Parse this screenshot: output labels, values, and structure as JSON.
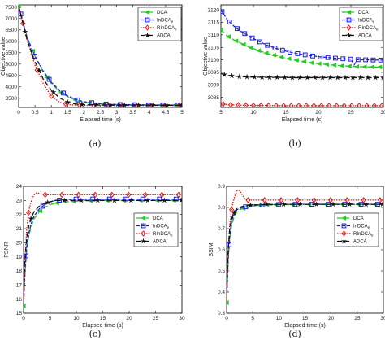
{
  "series_styles": [
    {
      "name": "DCA",
      "color": "#22cc22",
      "dash": "6,3",
      "marker": "arrow-left"
    },
    {
      "name": "InDCA",
      "sub": "e",
      "color": "#1a1aee",
      "dash": "4,2",
      "marker": "square"
    },
    {
      "name": "RInDCA",
      "sub": "e",
      "color": "#ee1111",
      "dash": "1.5,1.5",
      "marker": "diamond"
    },
    {
      "name": "ADCA",
      "color": "#111111",
      "dash": "6,3",
      "marker": "star"
    }
  ],
  "chart_data": [
    {
      "type": "line",
      "caption": "(a)",
      "xlabel": "Elapsed time (s)",
      "ylabel": "Objective value",
      "xlim": [
        0,
        5
      ],
      "ylim": [
        3100,
        7600
      ],
      "xticks": [
        0,
        0.5,
        1,
        1.5,
        2,
        2.5,
        3,
        3.5,
        4,
        4.5,
        5
      ],
      "xticklabels": [
        "0",
        "0.5",
        "1",
        "1.5",
        "2",
        "2.5",
        "3",
        "3.5",
        "4",
        "4.5",
        "5"
      ],
      "yticks": [
        3500,
        4000,
        4500,
        5000,
        5500,
        6000,
        6500,
        7000,
        7500
      ],
      "legend_position": "top-right",
      "series": [
        {
          "name": "DCA",
          "x": [
            0,
            0.25,
            0.5,
            0.75,
            1,
            1.25,
            1.5,
            1.75,
            2,
            2.5,
            3,
            3.5,
            4,
            4.5,
            5
          ],
          "y": [
            7550,
            6200,
            5350,
            4650,
            4150,
            3800,
            3570,
            3420,
            3330,
            3250,
            3220,
            3210,
            3205,
            3200,
            3200
          ]
        },
        {
          "name": "InDCA",
          "x": [
            0,
            0.25,
            0.5,
            0.75,
            1,
            1.25,
            1.5,
            1.75,
            2,
            2.5,
            3,
            3.5,
            4,
            4.5,
            5
          ],
          "y": [
            7550,
            6200,
            5350,
            4700,
            4200,
            3850,
            3600,
            3450,
            3350,
            3260,
            3230,
            3220,
            3210,
            3205,
            3200
          ]
        },
        {
          "name": "RInDCA",
          "x": [
            0,
            0.25,
            0.5,
            0.75,
            1,
            1.25,
            1.5,
            1.75,
            2,
            2.5,
            3,
            3.5,
            4,
            4.5,
            5
          ],
          "y": [
            7550,
            6100,
            4950,
            4150,
            3600,
            3330,
            3230,
            3200,
            3190,
            3185,
            3185,
            3185,
            3185,
            3185,
            3185
          ]
        },
        {
          "name": "ADCA",
          "x": [
            0,
            0.25,
            0.5,
            0.75,
            1,
            1.25,
            1.5,
            1.75,
            2,
            2.5,
            3,
            3.5,
            4,
            4.5,
            5
          ],
          "y": [
            7550,
            6100,
            5100,
            4350,
            3850,
            3520,
            3330,
            3250,
            3220,
            3205,
            3200,
            3198,
            3197,
            3196,
            3195
          ]
        }
      ]
    },
    {
      "type": "line",
      "caption": "(b)",
      "xlabel": "Elapsed time (s)",
      "ylabel": "Objective value",
      "xlim": [
        5,
        30
      ],
      "ylim": [
        3081,
        3122
      ],
      "xticks": [
        5,
        10,
        15,
        20,
        25,
        30
      ],
      "xticklabels": [
        "5",
        "10",
        "15",
        "20",
        "25",
        "30"
      ],
      "yticks": [
        3085,
        3090,
        3095,
        3100,
        3105,
        3110,
        3115,
        3120
      ],
      "legend_position": "top-right",
      "series": [
        {
          "name": "DCA",
          "x": [
            5,
            6,
            7,
            8,
            9,
            10,
            11,
            12,
            13,
            14,
            15,
            16,
            17,
            18,
            19,
            20,
            22,
            24,
            26,
            28,
            30
          ],
          "y": [
            3112,
            3109.5,
            3108,
            3106.8,
            3105.5,
            3104.5,
            3103.5,
            3102.7,
            3102,
            3101.3,
            3100.7,
            3100.2,
            3099.7,
            3099.2,
            3098.8,
            3098.5,
            3098,
            3097.6,
            3097.3,
            3097.2,
            3097.1
          ]
        },
        {
          "name": "InDCA",
          "x": [
            5,
            6,
            7,
            8,
            9,
            10,
            11,
            12,
            13,
            14,
            15,
            16,
            17,
            18,
            19,
            20,
            22,
            24,
            25,
            25.5,
            26,
            28,
            30
          ],
          "y": [
            3120,
            3116,
            3113.5,
            3111.5,
            3110,
            3108.5,
            3107.2,
            3106,
            3105,
            3104.2,
            3103.5,
            3102.9,
            3102.4,
            3102,
            3101.6,
            3101.3,
            3100.8,
            3100.4,
            3100.3,
            3098,
            3100.1,
            3100,
            3099.9
          ]
        },
        {
          "name": "RInDCA",
          "x": [
            5,
            6,
            7,
            8,
            10,
            12,
            14,
            16,
            18,
            20,
            22,
            24,
            26,
            28,
            30
          ],
          "y": [
            3082.5,
            3082.1,
            3082,
            3081.9,
            3081.8,
            3081.8,
            3081.7,
            3081.7,
            3081.7,
            3081.7,
            3081.7,
            3081.7,
            3081.7,
            3081.7,
            3081.7
          ]
        },
        {
          "name": "ADCA",
          "x": [
            5,
            6,
            7,
            8,
            10,
            12,
            14,
            16,
            18,
            20,
            22,
            24,
            26,
            28,
            30
          ],
          "y": [
            3094.5,
            3093.8,
            3093.5,
            3093.3,
            3093.1,
            3093,
            3093,
            3092.9,
            3092.9,
            3092.9,
            3092.9,
            3092.9,
            3092.9,
            3092.9,
            3092.9
          ]
        }
      ]
    },
    {
      "type": "line",
      "caption": "(c)",
      "xlabel": "Elapsed time (s)",
      "ylabel": "PSNR",
      "xlim": [
        0,
        30
      ],
      "ylim": [
        15,
        24
      ],
      "xticks": [
        0,
        5,
        10,
        15,
        20,
        25,
        30
      ],
      "xticklabels": [
        "0",
        "5",
        "10",
        "15",
        "20",
        "25",
        "30"
      ],
      "yticks": [
        15,
        16,
        17,
        18,
        19,
        20,
        21,
        22,
        23,
        24
      ],
      "legend_position": "center-right",
      "series": [
        {
          "name": "DCA",
          "x": [
            0,
            0.3,
            0.6,
            1,
            1.5,
            2,
            3,
            4,
            5,
            6,
            8,
            10,
            15,
            20,
            25,
            30
          ],
          "y": [
            15.5,
            18,
            19.5,
            20.5,
            21.2,
            21.7,
            22.2,
            22.5,
            22.7,
            22.8,
            22.9,
            22.95,
            23,
            23,
            23,
            23
          ]
        },
        {
          "name": "InDCA",
          "x": [
            0,
            0.3,
            0.6,
            1,
            1.5,
            2,
            3,
            4,
            5,
            6,
            8,
            10,
            15,
            20,
            25,
            30
          ],
          "y": [
            15.5,
            18.2,
            19.7,
            20.7,
            21.4,
            21.9,
            22.4,
            22.7,
            22.9,
            23,
            23.05,
            23.1,
            23.1,
            23.1,
            23.1,
            23.1
          ]
        },
        {
          "name": "RInDCA",
          "x": [
            0,
            0.3,
            0.6,
            1,
            1.5,
            2,
            2.5,
            3,
            4,
            5,
            6,
            8,
            10,
            15,
            20,
            25,
            30
          ],
          "y": [
            15.5,
            19,
            21,
            22.3,
            23,
            23.4,
            23.55,
            23.5,
            23.4,
            23.4,
            23.4,
            23.4,
            23.4,
            23.4,
            23.4,
            23.4,
            23.4
          ]
        },
        {
          "name": "ADCA",
          "x": [
            0,
            0.3,
            0.6,
            1,
            1.5,
            2,
            3,
            4,
            5,
            6,
            8,
            10,
            15,
            20,
            25,
            30
          ],
          "y": [
            16.8,
            19,
            20.3,
            21.2,
            21.8,
            22.2,
            22.6,
            22.8,
            22.9,
            23,
            23,
            23,
            23,
            23,
            23,
            23
          ]
        }
      ]
    },
    {
      "type": "line",
      "caption": "(d)",
      "xlabel": "Elapsed time (s)",
      "ylabel": "SSIM",
      "xlim": [
        0,
        30
      ],
      "ylim": [
        0.3,
        0.9
      ],
      "xticks": [
        0,
        5,
        10,
        15,
        20,
        25,
        30
      ],
      "xticklabels": [
        "0",
        "5",
        "10",
        "15",
        "20",
        "25",
        "30"
      ],
      "yticks": [
        0.3,
        0.4,
        0.5,
        0.6,
        0.7,
        0.8,
        0.9
      ],
      "legend_position": "center-right",
      "series": [
        {
          "name": "DCA",
          "x": [
            0,
            0.3,
            0.6,
            1,
            1.5,
            2,
            3,
            4,
            5,
            6,
            8,
            10,
            15,
            20,
            25,
            30
          ],
          "y": [
            0.35,
            0.55,
            0.65,
            0.72,
            0.76,
            0.78,
            0.795,
            0.8,
            0.805,
            0.81,
            0.812,
            0.813,
            0.814,
            0.815,
            0.815,
            0.815
          ]
        },
        {
          "name": "InDCA",
          "x": [
            0,
            0.3,
            0.6,
            1,
            1.5,
            2,
            3,
            4,
            5,
            6,
            8,
            10,
            15,
            20,
            25,
            30
          ],
          "y": [
            0.35,
            0.56,
            0.67,
            0.74,
            0.77,
            0.79,
            0.8,
            0.805,
            0.81,
            0.812,
            0.813,
            0.814,
            0.815,
            0.815,
            0.815,
            0.815
          ]
        },
        {
          "name": "RInDCA",
          "x": [
            0,
            0.3,
            0.6,
            1,
            1.5,
            2,
            2.5,
            3,
            3.5,
            4,
            5,
            6,
            8,
            10,
            15,
            20,
            25,
            30
          ],
          "y": [
            0.35,
            0.6,
            0.72,
            0.8,
            0.85,
            0.88,
            0.88,
            0.86,
            0.84,
            0.835,
            0.835,
            0.835,
            0.835,
            0.835,
            0.835,
            0.835,
            0.835,
            0.835
          ]
        },
        {
          "name": "ADCA",
          "x": [
            0,
            0.3,
            0.6,
            1,
            1.5,
            2,
            3,
            4,
            5,
            6,
            8,
            10,
            15,
            20,
            25,
            30
          ],
          "y": [
            0.4,
            0.6,
            0.7,
            0.75,
            0.78,
            0.795,
            0.805,
            0.81,
            0.812,
            0.813,
            0.814,
            0.815,
            0.815,
            0.815,
            0.815,
            0.815
          ]
        }
      ]
    }
  ]
}
